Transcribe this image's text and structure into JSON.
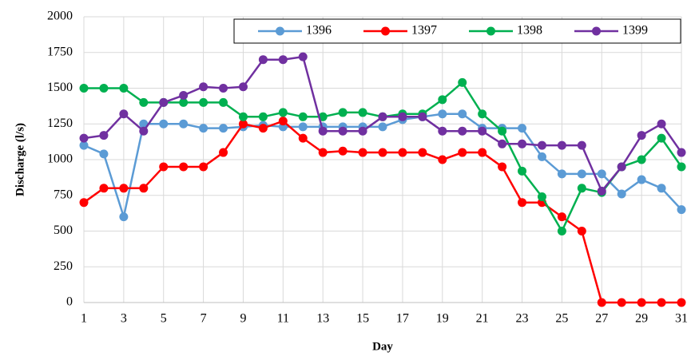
{
  "chart_data": {
    "type": "line",
    "x_label": "Day",
    "y_label": "Discharge (l/s)",
    "x": [
      1,
      2,
      3,
      4,
      5,
      6,
      7,
      8,
      9,
      10,
      11,
      12,
      13,
      14,
      15,
      16,
      17,
      18,
      19,
      20,
      21,
      22,
      23,
      24,
      25,
      26,
      27,
      28,
      29,
      30,
      31
    ],
    "series": [
      {
        "name": "1396",
        "color": "#5b9bd5",
        "values": [
          1100,
          1040,
          600,
          1250,
          1250,
          1250,
          1220,
          1220,
          1230,
          1240,
          1230,
          1230,
          1230,
          1230,
          1230,
          1230,
          1280,
          1300,
          1320,
          1320,
          1220,
          1220,
          1220,
          1020,
          900,
          900,
          900,
          760,
          860,
          800,
          650
        ]
      },
      {
        "name": "1397",
        "color": "#ff0000",
        "values": [
          700,
          800,
          800,
          800,
          950,
          950,
          950,
          1050,
          1250,
          1220,
          1270,
          1150,
          1050,
          1060,
          1050,
          1050,
          1050,
          1050,
          1000,
          1050,
          1050,
          950,
          700,
          700,
          600,
          500,
          0,
          0,
          0,
          0,
          0
        ]
      },
      {
        "name": "1398",
        "color": "#00b050",
        "values": [
          1500,
          1500,
          1500,
          1400,
          1400,
          1400,
          1400,
          1400,
          1300,
          1300,
          1330,
          1300,
          1300,
          1330,
          1330,
          1300,
          1320,
          1320,
          1420,
          1540,
          1320,
          1200,
          920,
          740,
          500,
          800,
          770,
          950,
          1000,
          1150,
          950
        ]
      },
      {
        "name": "1399",
        "color": "#7030a0",
        "values": [
          1150,
          1170,
          1320,
          1200,
          1400,
          1450,
          1510,
          1500,
          1510,
          1700,
          1700,
          1720,
          1200,
          1200,
          1200,
          1300,
          1300,
          1300,
          1200,
          1200,
          1200,
          1110,
          1110,
          1100,
          1100,
          1100,
          780,
          950,
          1170,
          1250,
          1050
        ]
      }
    ],
    "xlim": [
      1,
      31
    ],
    "xticks": [
      1,
      3,
      5,
      7,
      9,
      11,
      13,
      15,
      17,
      19,
      21,
      23,
      25,
      27,
      29,
      31
    ],
    "ylim": [
      0,
      2000
    ],
    "yticks": [
      0,
      250,
      500,
      750,
      1000,
      1250,
      1500,
      1750,
      2000
    ],
    "grid": true,
    "legend": "top"
  }
}
